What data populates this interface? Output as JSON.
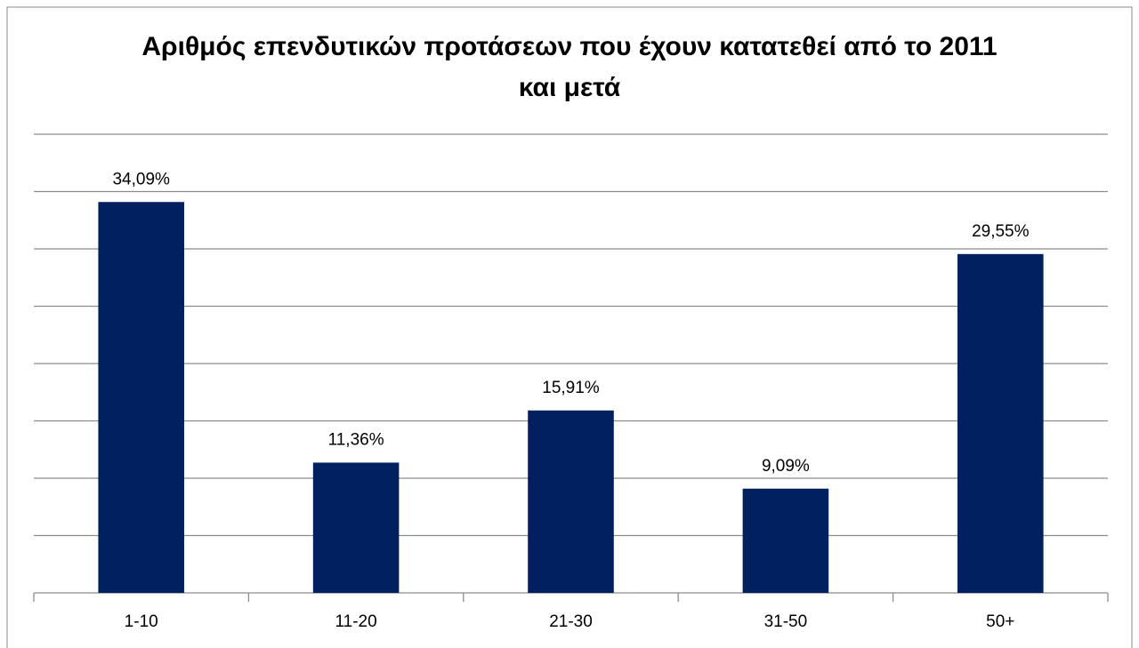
{
  "chart_data": {
    "type": "bar",
    "title": "Αριθμός επενδυτικών προτάσεων που έχουν κατατεθεί από το 2011  και μετά",
    "categories": [
      "1-10",
      "11-20",
      "21-30",
      "31-50",
      "50+"
    ],
    "values": [
      34.09,
      11.36,
      15.91,
      9.09,
      29.55
    ],
    "value_labels": [
      "34,09%",
      "11,36%",
      "15,91%",
      "9,09%",
      "29,55%"
    ],
    "color": "#002060",
    "ylim": [
      0,
      40
    ],
    "yticks": [
      0,
      5,
      10,
      15,
      20,
      25,
      30,
      35,
      40
    ],
    "grid": true
  }
}
